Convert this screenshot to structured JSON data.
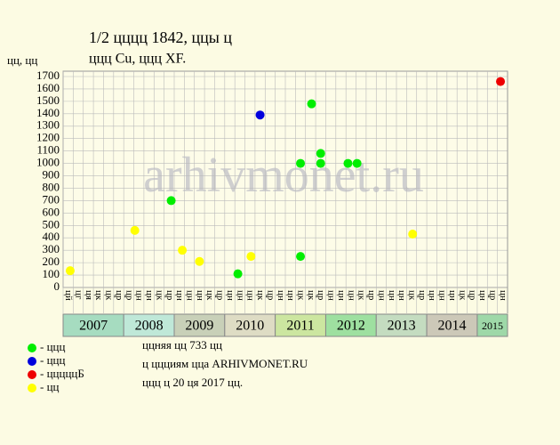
{
  "chart_data": {
    "type": "scatter",
    "title": "1/2 цццц 1842, ццы ц",
    "subtitle": "ццц Cu, ццц XF.",
    "y_label": "цц, цц",
    "watermark": "arhivmonet.ru",
    "xlim": [
      0,
      44
    ],
    "ylim": [
      0,
      1700
    ],
    "yticks": [
      0,
      100,
      200,
      300,
      400,
      500,
      600,
      700,
      800,
      900,
      1000,
      1100,
      1200,
      1300,
      1400,
      1500,
      1600,
      1700
    ],
    "grid": true,
    "column_labels": [
      "цй",
      "цг",
      "ця",
      "цк",
      "цк",
      "цр",
      "цр",
      "цн",
      "цн",
      "цк",
      "цр",
      "цн",
      "цн",
      "цн",
      "цк",
      "цр",
      "цн",
      "цн",
      "цн",
      "цк",
      "цр",
      "цн",
      "цн",
      "цк",
      "цк",
      "цр",
      "цн",
      "цн",
      "цн",
      "цк",
      "цр",
      "цн",
      "цн",
      "цн",
      "цк",
      "цр",
      "цн",
      "цн",
      "цн",
      "цк",
      "цр",
      "цн",
      "цр",
      "цн"
    ],
    "years": [
      {
        "label": "2007",
        "columns": 6,
        "color": "#a6dcc0"
      },
      {
        "label": "2008",
        "columns": 5,
        "color": "#bfe8d8"
      },
      {
        "label": "2009",
        "columns": 5,
        "color": "#c8d0b8"
      },
      {
        "label": "2010",
        "columns": 5,
        "color": "#dedcc4"
      },
      {
        "label": "2011",
        "columns": 5,
        "color": "#cce6a0"
      },
      {
        "label": "2012",
        "columns": 5,
        "color": "#9ee0a0"
      },
      {
        "label": "2013",
        "columns": 5,
        "color": "#c4dcc0"
      },
      {
        "label": "2014",
        "columns": 5,
        "color": "#ccc8b8"
      },
      {
        "label": "2015",
        "columns": 3,
        "color": "#9ed8a8"
      }
    ],
    "series": [
      {
        "name": "- ццц",
        "color": "#00ee00",
        "x": [
          10.7,
          17.3,
          23.5,
          23.5,
          24.6,
          25.5,
          25.5,
          28.2,
          29.1
        ],
        "values": [
          700,
          110,
          250,
          1000,
          1480,
          1080,
          1000,
          1000,
          1000
        ]
      },
      {
        "name": "- ццц",
        "color": "#0000dd",
        "x": [
          19.5
        ],
        "values": [
          1390
        ]
      },
      {
        "name": "- цццццБ",
        "color": "#ee0000",
        "x": [
          43.3
        ],
        "values": [
          1660
        ]
      },
      {
        "name": "- цц",
        "color": "#ffff00",
        "x": [
          0.7,
          7.1,
          11.8,
          13.5,
          18.6,
          34.6
        ],
        "values": [
          135,
          460,
          300,
          210,
          250,
          430
        ]
      }
    ],
    "notes": [
      "ццняя цц 733 цц",
      "ц ццциям цца ARHIVMONET.RU",
      "ццц ц 20 ця 2017 цц."
    ]
  }
}
